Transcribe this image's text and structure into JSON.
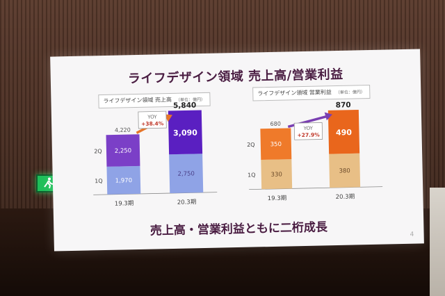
{
  "slide": {
    "title": "ライフデザイン領域 売上高/営業利益",
    "footer": "売上高・営業利益ともに二桁成長",
    "page_number": "4"
  },
  "panels": {
    "left": {
      "caption": "ライフデザイン領域 売上高",
      "unit": "（単位：億円）"
    },
    "right": {
      "caption": "ライフデザイン領域 営業利益",
      "unit": "（単位：億円）"
    }
  },
  "chart_data": [
    {
      "type": "bar",
      "categories": [
        "19.3期",
        "20.3期"
      ],
      "series": [
        {
          "name": "1Q",
          "values": [
            1970,
            2750
          ]
        },
        {
          "name": "2Q",
          "values": [
            2250,
            3090
          ]
        }
      ],
      "totals": [
        "4,220",
        "5,840"
      ],
      "value_labels": {
        "1Q": [
          "1,970",
          "2,750"
        ],
        "2Q": [
          "2,250",
          "3,090"
        ]
      },
      "yoy_label": "YOY",
      "yoy_value": "+38.4%",
      "colors": {
        "1Q": "#8fa3e6",
        "2Q_prev": "#7b3fc7",
        "2Q_curr": "#5a1fc1",
        "arrow": "#e6762a"
      },
      "ylim": [
        0,
        6500
      ]
    },
    {
      "type": "bar",
      "categories": [
        "19.3期",
        "20.3期"
      ],
      "series": [
        {
          "name": "1Q",
          "values": [
            330,
            380
          ]
        },
        {
          "name": "2Q",
          "values": [
            350,
            490
          ]
        }
      ],
      "totals": [
        "680",
        "870"
      ],
      "value_labels": {
        "1Q": [
          "330",
          "380"
        ],
        "2Q": [
          "350",
          "490"
        ]
      },
      "yoy_label": "YOY",
      "yoy_value": "+27.9%",
      "colors": {
        "1Q": "#e8bf86",
        "2Q_prev": "#ef7a2a",
        "2Q_curr": "#e9661c",
        "arrow": "#7a3fb2"
      },
      "ylim": [
        0,
        1000
      ]
    }
  ]
}
